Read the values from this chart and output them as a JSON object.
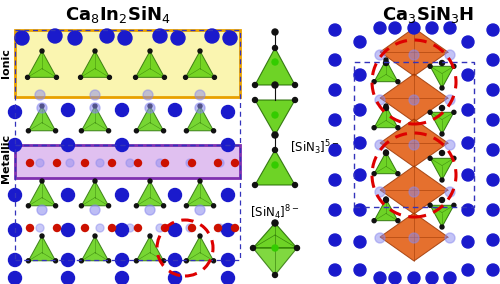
{
  "title_left": "Ca$_8$In$_2$SiN$_4$",
  "title_right": "Ca$_3$SiN$_3$H",
  "label_ionic": "Ionic",
  "label_metallic": "Metallic",
  "label_sin3": "[SiN$_3$]$^{5-}$",
  "label_sin4": "[SiN$_4$]$^{8-}$",
  "bg_color": "#ffffff",
  "title_fontsize": 13,
  "ionic_box_color": "#faf5b0",
  "ionic_box_edge": "#e8a000",
  "metallic_box_color": "#e0c0f0",
  "metallic_box_edge": "#8030b0",
  "blue_atom": "#1a1acc",
  "blue_atom_light": "#8888ee",
  "green_atom": "#33cc00",
  "red_atom": "#cc1100",
  "black_atom": "#111111",
  "orange_poly": "#e05000",
  "green_poly": "#55cc00",
  "green_poly_edge": "#226600",
  "red_dashed": "#dd0000",
  "cell_line": "#3333bb"
}
